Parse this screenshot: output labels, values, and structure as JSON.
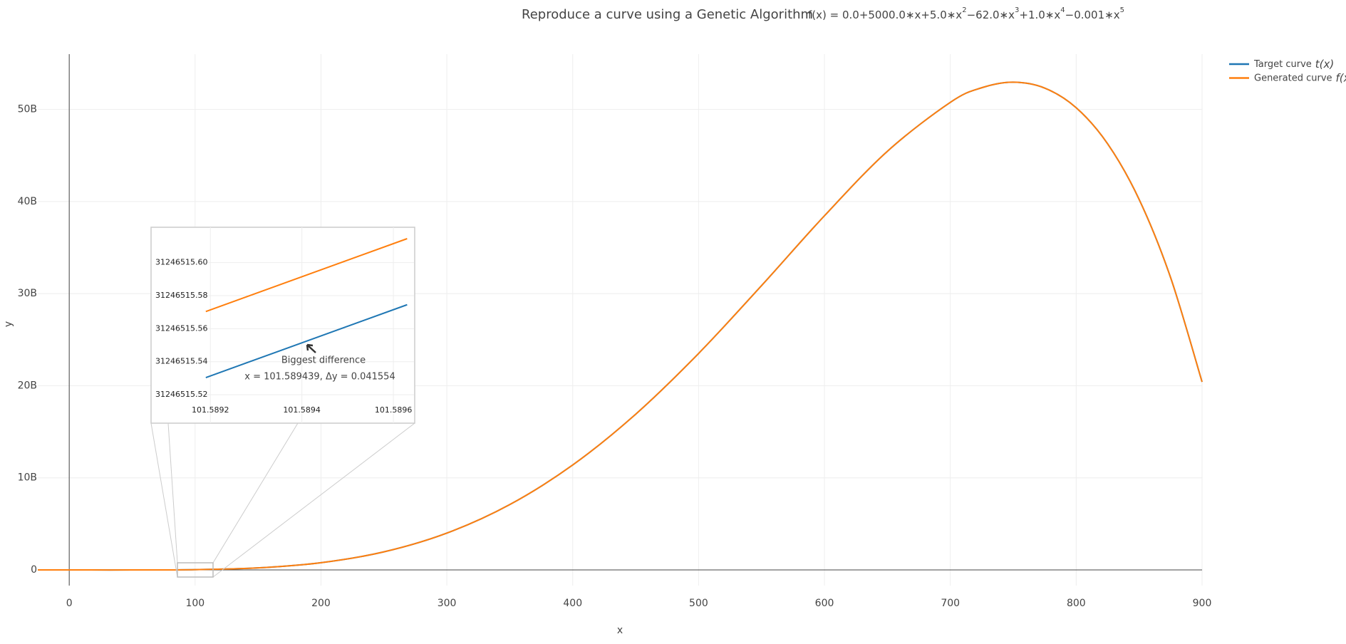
{
  "chart_data": [
    {
      "type": "line",
      "title": "Reproduce a curve using a Genetic Algorithm",
      "formula_parts": [
        {
          "text": "f(x) = 0.0+5000.0∗x+5.0∗x",
          "exp": "2"
        },
        {
          "text": "−62.0∗x",
          "exp": "3"
        },
        {
          "text": "+1.0∗x",
          "exp": "4"
        },
        {
          "text": "−0.001∗x",
          "exp": "5"
        }
      ],
      "x_label": "x",
      "y_label": "y",
      "x": [
        -25,
        0,
        50,
        100,
        150,
        200,
        250,
        300,
        350,
        400,
        450,
        500,
        550,
        600,
        650,
        700,
        725,
        750,
        775,
        800,
        825,
        850,
        875,
        900
      ],
      "series": [
        {
          "name": "Target curve",
          "legend_symbol": "t(x)",
          "color": "#1f77b4",
          "values": [
            1247000,
            0,
            -1560000,
            28550000,
            221900000,
            785200000,
            1962500000,
            3998000000,
            7098000000,
            11395000000,
            16906000000,
            23504000000,
            30866000000,
            38452000000,
            45454000000,
            50768000000,
            52355000000,
            52950000000,
            52313000000,
            50180000000,
            46259000000,
            40229000000,
            31742000000,
            20416000000
          ]
        },
        {
          "name": "Generated curve",
          "legend_symbol": "f(x)",
          "color": "#ff7f0e",
          "values": [
            1247000,
            0,
            -1560000,
            28550000,
            221900000,
            785200000,
            1962500000,
            3998000000,
            7098000000,
            11395000000,
            16906000000,
            23504000000,
            30866000000,
            38452000000,
            45454000000,
            50768000000,
            52355000000,
            52950000000,
            52313000000,
            50180000000,
            46259000000,
            40229000000,
            31742000000,
            20416000000
          ]
        }
      ],
      "xlim": [
        -25,
        900
      ],
      "ylim": [
        -1700000000,
        56000000000
      ],
      "xticks": [
        0,
        100,
        200,
        300,
        400,
        500,
        600,
        700,
        800,
        900
      ],
      "yticks": [
        0,
        {
          "value": 10000000000,
          "label": "10B"
        },
        {
          "value": 20000000000,
          "label": "20B"
        },
        {
          "value": 30000000000,
          "label": "30B"
        },
        {
          "value": 40000000000,
          "label": "40B"
        },
        {
          "value": 50000000000,
          "label": "50B"
        }
      ],
      "grid": true
    },
    {
      "type": "line",
      "x": [
        101.58919,
        101.58963
      ],
      "series": [
        {
          "color": "#1f77b4",
          "values": [
            31246515.5304,
            31246515.5745
          ]
        },
        {
          "color": "#ff7f0e",
          "values": [
            31246515.5704,
            31246515.6145
          ]
        }
      ],
      "xlim": [
        101.58912,
        101.589645
      ],
      "ylim": [
        31246515.5028,
        31246515.6214
      ],
      "xticks": [
        101.5892,
        101.5894,
        101.5896
      ],
      "yticks": [
        {
          "value": 31246515.52,
          "label": "31246515.52"
        },
        {
          "value": 31246515.54,
          "label": "31246515.54"
        },
        {
          "value": 31246515.56,
          "label": "31246515.56"
        },
        {
          "value": 31246515.58,
          "label": "31246515.58"
        },
        {
          "value": 31246515.6,
          "label": "31246515.60"
        }
      ],
      "grid": true,
      "annotation": {
        "text": "Biggest difference",
        "detail": "x = 101.589439, Δy = 0.041554"
      }
    }
  ]
}
